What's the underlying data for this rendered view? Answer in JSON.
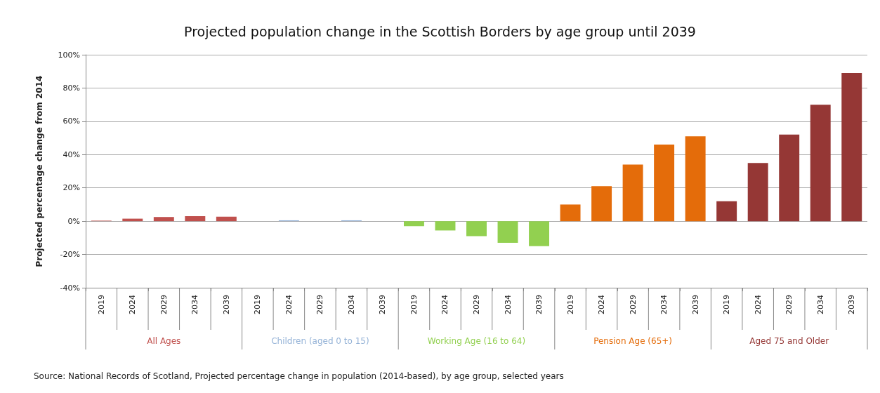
{
  "chart_data": {
    "type": "bar",
    "title": "Projected population change in the Scottish Borders by age group until 2039",
    "ylabel": "Projected percentage change from 2014",
    "categories": [
      "2019",
      "2024",
      "2029",
      "2034",
      "2039",
      "2019",
      "2024",
      "2029",
      "2034",
      "2039",
      "2019",
      "2024",
      "2029",
      "2034",
      "2039",
      "2019",
      "2024",
      "2029",
      "2034",
      "2039",
      "2019",
      "2024",
      "2029",
      "2034",
      "2039"
    ],
    "series": [
      {
        "name": "All Ages",
        "color": "#c0504d",
        "values": [
          0.3,
          1.5,
          2.5,
          3,
          2.7,
          null,
          null,
          null,
          null,
          null,
          null,
          null,
          null,
          null,
          null,
          null,
          null,
          null,
          null,
          null,
          null,
          null,
          null,
          null,
          null
        ]
      },
      {
        "name": "Children (aged 0 to 15)",
        "color": "#95b3d7",
        "values": [
          null,
          null,
          null,
          null,
          null,
          null,
          0.5,
          null,
          0.5,
          0,
          null,
          null,
          null,
          null,
          null,
          null,
          null,
          null,
          null,
          null,
          null,
          null,
          null,
          null,
          null
        ]
      },
      {
        "name": "Working Age (16 to 64)",
        "color": "#92d050",
        "values": [
          null,
          null,
          null,
          null,
          null,
          null,
          null,
          null,
          null,
          null,
          -3,
          -5.6,
          -9,
          -13,
          -15,
          null,
          null,
          null,
          null,
          null,
          null,
          null,
          null,
          null,
          null
        ]
      },
      {
        "name": "Pension Age (65+)",
        "color": "#e46c0a",
        "values": [
          null,
          null,
          null,
          null,
          null,
          null,
          null,
          null,
          null,
          null,
          null,
          null,
          null,
          null,
          null,
          10,
          21,
          34,
          46,
          51,
          null,
          null,
          null,
          null,
          null
        ]
      },
      {
        "name": "Aged 75 and Older",
        "color": "#953735",
        "values": [
          null,
          null,
          null,
          null,
          null,
          null,
          null,
          null,
          null,
          null,
          null,
          null,
          null,
          null,
          null,
          null,
          null,
          null,
          null,
          null,
          12,
          35,
          52,
          70,
          89
        ]
      }
    ],
    "ylim": [
      -40,
      100
    ],
    "yticks": [
      {
        "value": -40,
        "label": "-40%"
      },
      {
        "value": -20,
        "label": "-20%"
      },
      {
        "value": 0,
        "label": "0%"
      },
      {
        "value": 20,
        "label": "20%"
      },
      {
        "value": 40,
        "label": "40%"
      },
      {
        "value": 60,
        "label": "60%"
      },
      {
        "value": 80,
        "label": "80%"
      },
      {
        "value": 100,
        "label": "100%"
      }
    ],
    "grid": "y",
    "legend": false,
    "annotations": [
      "Source: National Records of Scotland, Projected percentage change in population (2014-based), by age group, selected years"
    ]
  }
}
